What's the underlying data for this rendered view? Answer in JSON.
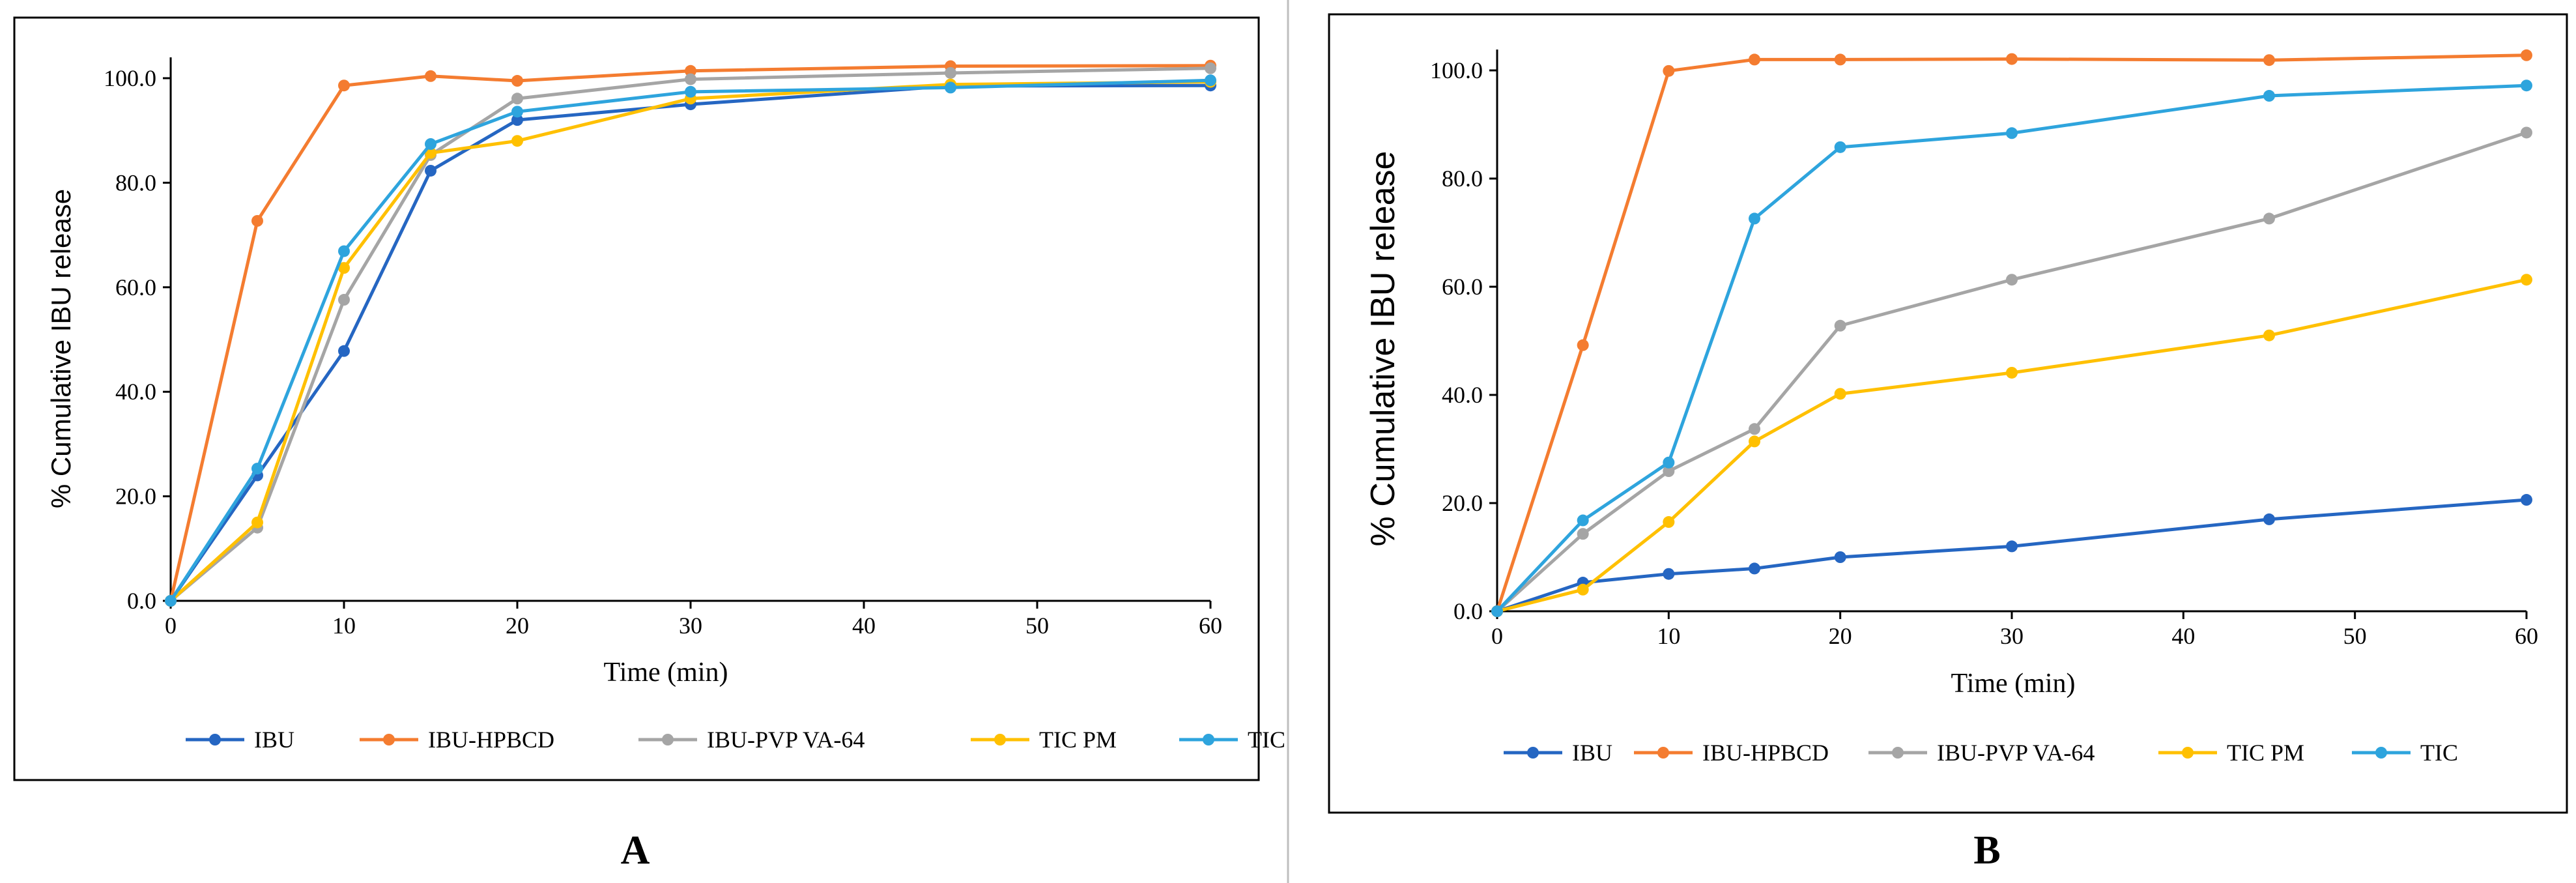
{
  "colors": {
    "IBU": "#2566c2",
    "IBU-HPBCD": "#f47c30",
    "IBU-PVP VA-64": "#a5a5a5",
    "TIC PM": "#ffc000",
    "TIC": "#2ea4dd"
  },
  "chart_data": [
    {
      "type": "line",
      "panel": "A",
      "panel_label": "A",
      "xlabel": "Time (min)",
      "ylabel": "% Cumulative IBU release",
      "x": [
        0,
        5,
        10,
        15,
        20,
        30,
        45,
        60
      ],
      "xlim": [
        0,
        60
      ],
      "ylim": [
        0,
        100
      ],
      "x_ticks": [
        "0",
        "10",
        "20",
        "30",
        "40",
        "50",
        "60"
      ],
      "y_ticks": [
        "0.0",
        "20.0",
        "40.0",
        "60.0",
        "80.0",
        "100.0"
      ],
      "series": [
        {
          "name": "IBU",
          "values": [
            0,
            24.0,
            47.8,
            82.3,
            92.0,
            95.0,
            98.5,
            98.6
          ]
        },
        {
          "name": "IBU-HPBCD",
          "values": [
            0,
            72.7,
            98.6,
            100.4,
            99.5,
            101.4,
            102.3,
            102.4
          ]
        },
        {
          "name": "IBU-PVP VA-64",
          "values": [
            0,
            14.0,
            57.6,
            85.3,
            96.1,
            99.8,
            101.0,
            101.9
          ]
        },
        {
          "name": "TIC PM",
          "values": [
            0,
            15.0,
            63.7,
            85.7,
            88.0,
            96.1,
            98.8,
            99.3
          ]
        },
        {
          "name": "TIC",
          "values": [
            0,
            25.3,
            66.9,
            87.4,
            93.6,
            97.4,
            98.2,
            99.6
          ]
        }
      ],
      "legend": [
        "IBU",
        "IBU-HPBCD",
        "IBU-PVP VA-64",
        "TIC PM",
        "TIC"
      ],
      "legend_position": "bottom",
      "grid": false
    },
    {
      "type": "line",
      "panel": "B",
      "panel_label": "B",
      "xlabel": "Time (min)",
      "ylabel": "% Cumulative IBU release",
      "x": [
        0,
        5,
        10,
        15,
        20,
        30,
        45,
        60
      ],
      "xlim": [
        0,
        60
      ],
      "ylim": [
        0,
        100
      ],
      "x_ticks": [
        "0",
        "10",
        "20",
        "30",
        "40",
        "50",
        "60"
      ],
      "y_ticks": [
        "0.0",
        "20.0",
        "40.0",
        "60.0",
        "80.0",
        "100.0"
      ],
      "series": [
        {
          "name": "IBU",
          "values": [
            0,
            5.3,
            6.9,
            7.9,
            10.0,
            12.0,
            17.0,
            20.6
          ]
        },
        {
          "name": "IBU-HPBCD",
          "values": [
            0,
            49.2,
            99.9,
            102.0,
            102.0,
            102.1,
            101.9,
            102.8
          ]
        },
        {
          "name": "IBU-PVP VA-64",
          "values": [
            0,
            14.3,
            25.9,
            33.7,
            52.8,
            61.3,
            72.6,
            88.5
          ]
        },
        {
          "name": "TIC PM",
          "values": [
            0,
            4.0,
            16.5,
            31.4,
            40.2,
            44.1,
            51.0,
            61.3
          ]
        },
        {
          "name": "TIC",
          "values": [
            0,
            16.8,
            27.5,
            72.6,
            85.8,
            88.4,
            95.3,
            97.2
          ]
        }
      ],
      "legend": [
        "IBU",
        "IBU-HPBCD",
        "IBU-PVP VA-64",
        "TIC PM",
        "TIC"
      ],
      "legend_position": "bottom",
      "grid": false
    }
  ]
}
